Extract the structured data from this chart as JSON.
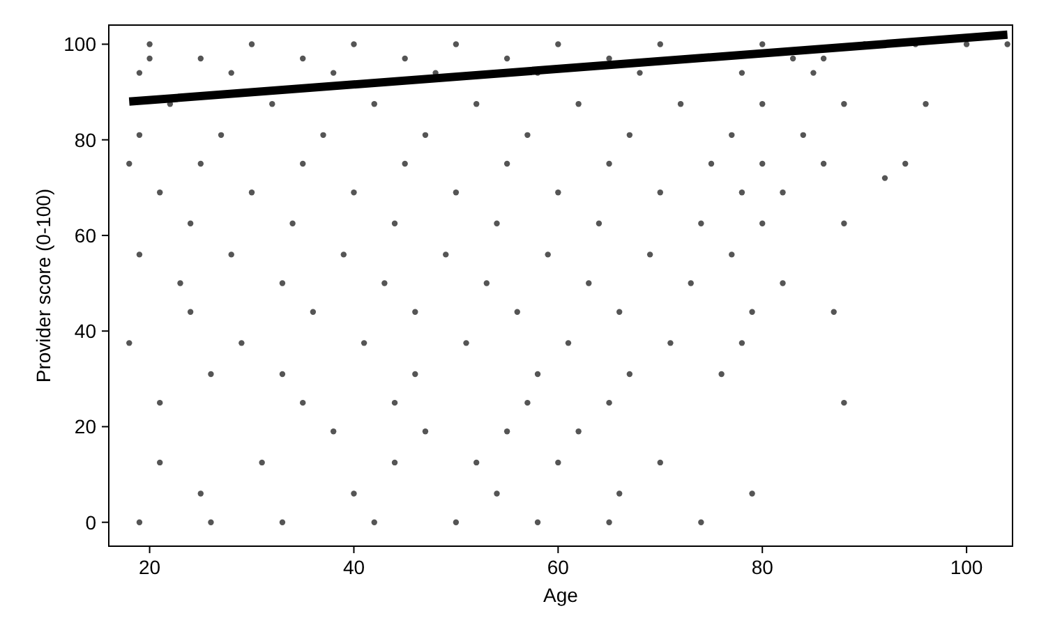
{
  "chart_data": {
    "type": "scatter",
    "xlabel": "Age",
    "ylabel": "Provider score (0-100)",
    "xlim": [
      16,
      104.5
    ],
    "ylim": [
      -5,
      104
    ],
    "xticks": [
      20,
      40,
      60,
      80,
      100
    ],
    "yticks": [
      0,
      20,
      40,
      60,
      80,
      100
    ],
    "grid": false,
    "series": [
      {
        "color": "#555555",
        "marker": "circle",
        "x": [
          20,
          30,
          40,
          50,
          60,
          70,
          80,
          90,
          95,
          100,
          104,
          20,
          25,
          35,
          45,
          55,
          65,
          86,
          83,
          19,
          28,
          38,
          48,
          58,
          68,
          78,
          85,
          22,
          32,
          42,
          52,
          62,
          72,
          80,
          88,
          96,
          19,
          27,
          37,
          47,
          57,
          67,
          77,
          84,
          18,
          25,
          35,
          45,
          55,
          65,
          75,
          80,
          86,
          92,
          94,
          21,
          30,
          40,
          50,
          60,
          70,
          78,
          82,
          24,
          34,
          44,
          54,
          64,
          74,
          80,
          88,
          19,
          28,
          39,
          49,
          59,
          69,
          77,
          23,
          33,
          43,
          53,
          63,
          73,
          82,
          24,
          36,
          46,
          56,
          66,
          79,
          87,
          18,
          29,
          41,
          51,
          61,
          71,
          78,
          26,
          33,
          46,
          58,
          67,
          76,
          21,
          35,
          44,
          57,
          65,
          88,
          38,
          47,
          55,
          62,
          21,
          31,
          44,
          52,
          60,
          70,
          25,
          40,
          54,
          66,
          79,
          19,
          26,
          33,
          42,
          50,
          58,
          65,
          74
        ],
        "values": [
          100,
          100,
          100,
          100,
          100,
          100,
          100,
          100,
          100,
          100,
          100,
          97,
          97,
          97,
          97,
          97,
          97,
          97,
          97,
          94,
          94,
          94,
          94,
          94,
          94,
          94,
          94,
          87.5,
          87.5,
          87.5,
          87.5,
          87.5,
          87.5,
          87.5,
          87.5,
          87.5,
          81,
          81,
          81,
          81,
          81,
          81,
          81,
          81,
          75,
          75,
          75,
          75,
          75,
          75,
          75,
          75,
          75,
          72,
          75,
          69,
          69,
          69,
          69,
          69,
          69,
          69,
          69,
          62.5,
          62.5,
          62.5,
          62.5,
          62.5,
          62.5,
          62.5,
          62.5,
          56,
          56,
          56,
          56,
          56,
          56,
          56,
          50,
          50,
          50,
          50,
          50,
          50,
          50,
          44,
          44,
          44,
          44,
          44,
          44,
          44,
          37.5,
          37.5,
          37.5,
          37.5,
          37.5,
          37.5,
          37.5,
          31,
          31,
          31,
          31,
          31,
          31,
          25,
          25,
          25,
          25,
          25,
          25,
          19,
          19,
          19,
          19,
          12.5,
          12.5,
          12.5,
          12.5,
          12.5,
          12.5,
          6,
          6,
          6,
          6,
          6,
          0,
          0,
          0,
          0,
          0,
          0,
          0,
          0
        ]
      },
      {
        "type": "line",
        "color": "#000000",
        "marker": "none",
        "x": [
          18,
          104
        ],
        "values": [
          88,
          102
        ]
      }
    ]
  }
}
